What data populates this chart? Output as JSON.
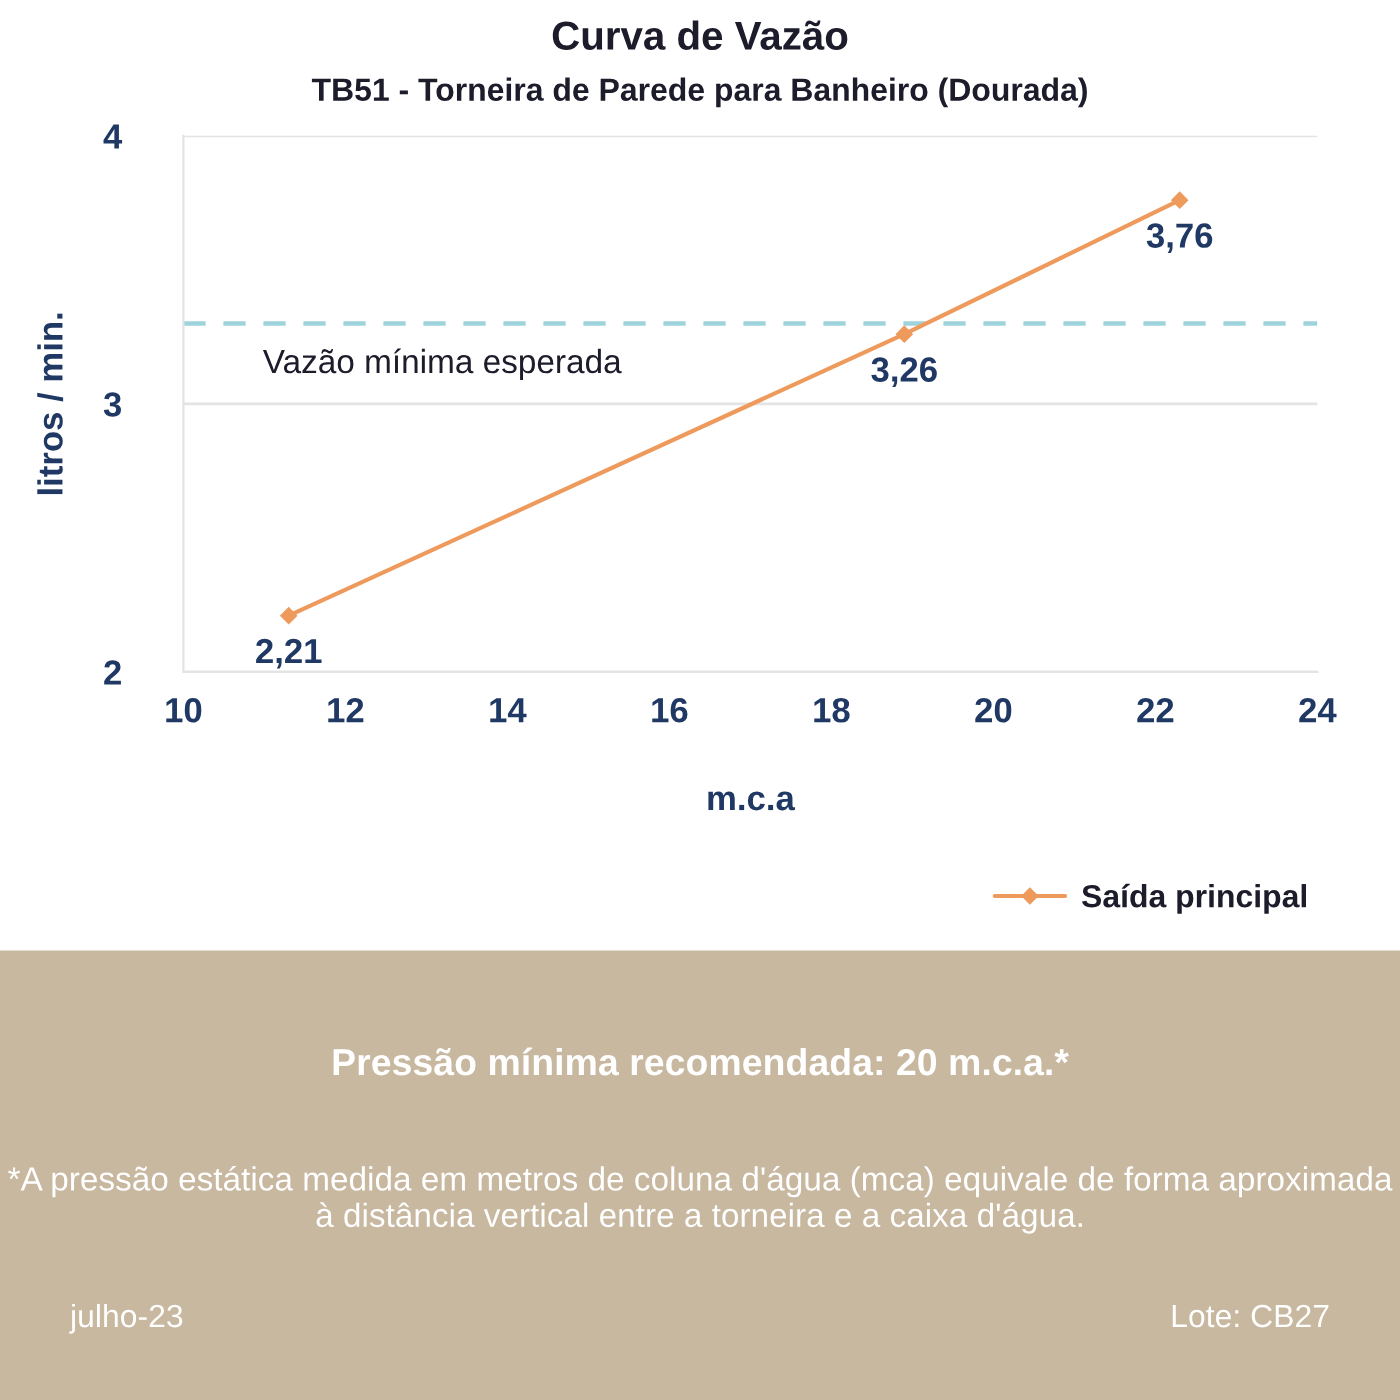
{
  "chart_data": {
    "type": "line",
    "title": "Curva de Vazão",
    "subtitle": "TB51 - Torneira de Parede para Banheiro (Dourada)",
    "xlabel": "m.c.a",
    "ylabel": "litros / min.",
    "x": [
      11.3,
      18.9,
      22.3
    ],
    "series": [
      {
        "name": "Saída principal",
        "color": "#ee9a5c",
        "values": [
          2.21,
          3.26,
          3.76
        ],
        "value_labels": [
          "2,21",
          "3,26",
          "3,76"
        ]
      }
    ],
    "xlim": [
      10,
      24
    ],
    "xticks": [
      10,
      12,
      14,
      16,
      18,
      20,
      22,
      24
    ],
    "ylim": [
      2,
      4
    ],
    "yticks": [
      2,
      3,
      4
    ],
    "grid": "y",
    "legend": "bottom right",
    "marker": "diamond",
    "line_style": "solid",
    "ref_lines": [
      {
        "axis": "y",
        "value": 3.3,
        "label": "Vazão mínima esperada",
        "color": "#9fd3dc",
        "line_style": "dashed"
      }
    ],
    "annotations": [
      "Pressão mínima recomendada: 20 m.c.a.*",
      "*A pressão estática medida em metros de coluna d'água (mca) equivale de forma aproximada à distância vertical entre a torneira e a caixa d'água.",
      "julho-23",
      "Lote: CB27"
    ]
  }
}
